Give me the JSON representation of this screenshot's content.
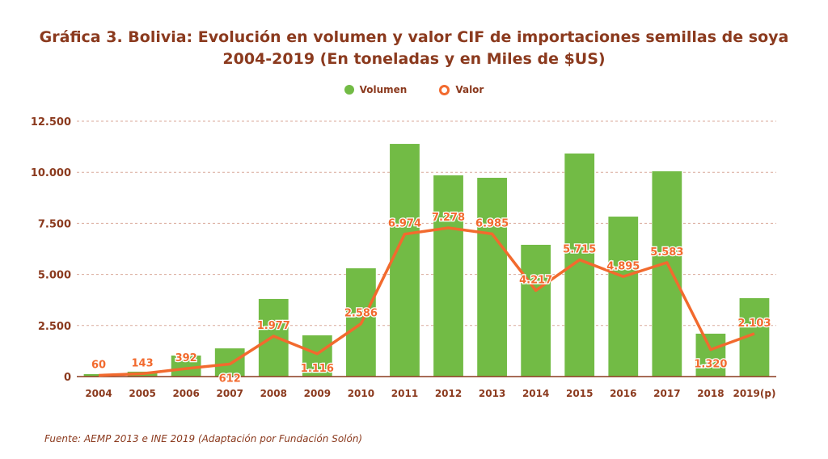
{
  "chart_data": {
    "type": "bar+line",
    "title_line1": "Gráfica 3. Bolivia: Evolución en volumen y valor CIF de importaciones semillas de soya",
    "title_line2": "2004-2019 (En toneladas y en Miles de $US)",
    "categories": [
      "2004",
      "2005",
      "2006",
      "2007",
      "2008",
      "2009",
      "2010",
      "2011",
      "2012",
      "2013",
      "2014",
      "2015",
      "2016",
      "2017",
      "2018",
      "2019(p)"
    ],
    "series": [
      {
        "name": "Volumen",
        "type": "bar",
        "color": "#72bb45",
        "values": [
          120,
          240,
          1030,
          1380,
          3800,
          2020,
          5300,
          11390,
          9850,
          9730,
          6450,
          10920,
          7830,
          10050,
          2100,
          3840
        ]
      },
      {
        "name": "Valor",
        "type": "line",
        "color": "#f26a2e",
        "values": [
          60,
          143,
          392,
          612,
          1977,
          1116,
          2586,
          6974,
          7278,
          6985,
          4217,
          5715,
          4895,
          5583,
          1320,
          2103
        ],
        "labels": [
          "60",
          "143",
          "392",
          "612",
          "1.977",
          "1.116",
          "2.586",
          "6.974",
          "7.278",
          "6.985",
          "4.217",
          "5.715",
          "4.895",
          "5.583",
          "1.320",
          "2.103"
        ]
      }
    ],
    "yticks": [
      0,
      2500,
      5000,
      7500,
      10000,
      12500
    ],
    "ytick_labels": [
      "0",
      "2.500",
      "5.000",
      "7.500",
      "10.000",
      "12.500"
    ],
    "ylim": [
      0,
      12500
    ],
    "grid": true,
    "legend_position": "top-center"
  },
  "source": "Fuente: AEMP 2013 e INE 2019 (Adaptación por Fundación Solón)"
}
